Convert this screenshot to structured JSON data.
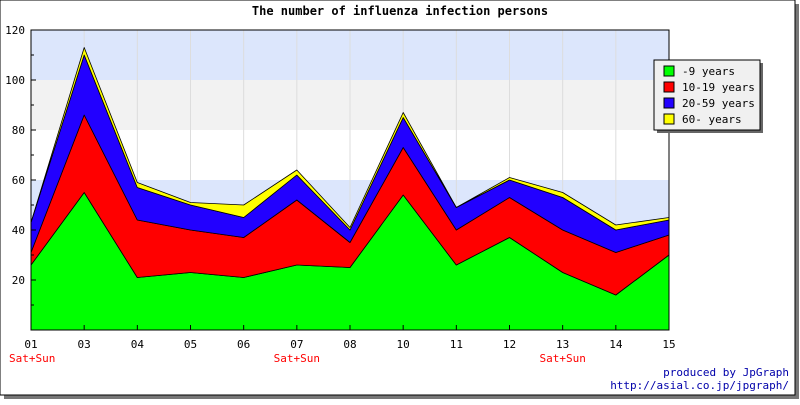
{
  "chart_data": {
    "type": "area",
    "stacked": true,
    "title": "The number of influenza infection persons",
    "categories": [
      "01",
      "03",
      "04",
      "05",
      "06",
      "07",
      "08",
      "10",
      "11",
      "12",
      "13",
      "14",
      "15"
    ],
    "x_annotations": [
      {
        "category": "01",
        "text": "Sat+Sun"
      },
      {
        "category": "07",
        "text": "Sat+Sun"
      },
      {
        "category": "13",
        "text": "Sat+Sun"
      }
    ],
    "ylim": [
      0,
      120
    ],
    "yticks": [
      20,
      40,
      60,
      80,
      100,
      120
    ],
    "grid": true,
    "band_colors": [
      "#ffffff",
      "#f2f2f2",
      "#dce6fc"
    ],
    "legend_position": "right",
    "series": [
      {
        "name": "-9 years",
        "color": "#00ff00",
        "values": [
          26,
          55,
          21,
          23,
          21,
          26,
          25,
          54,
          26,
          37,
          23,
          14,
          30
        ]
      },
      {
        "name": "10-19 years",
        "color": "#ff0000",
        "values": [
          5,
          31,
          23,
          17,
          16,
          26,
          10,
          19,
          14,
          16,
          17,
          17,
          8
        ]
      },
      {
        "name": "20-59 years",
        "color": "#2200ff",
        "values": [
          12,
          24,
          13,
          10,
          8,
          10,
          5,
          12,
          9,
          7,
          13,
          9,
          6
        ]
      },
      {
        "name": "60- years",
        "color": "#ffff00",
        "values": [
          0,
          3,
          2,
          1,
          5,
          2,
          1,
          2,
          0,
          1,
          2,
          2,
          1
        ]
      }
    ]
  },
  "footer": {
    "credit": "produced by JpGraph",
    "url": "http://asial.co.jp/jpgraph/"
  }
}
